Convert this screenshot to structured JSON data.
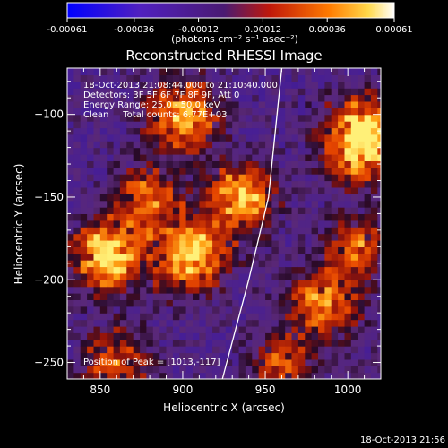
{
  "chart_data": {
    "type": "heatmap",
    "title": "Reconstructed RHESSI Image",
    "xlabel": "Heliocentric X (arcsec)",
    "ylabel": "Heliocentric Y (arcsec)",
    "xlim": [
      830,
      1020
    ],
    "ylim": [
      -260,
      -72
    ],
    "x_ticks": [
      850,
      900,
      950,
      1000
    ],
    "y_ticks": [
      -100,
      -150,
      -200,
      -250
    ],
    "colorbar": {
      "range": [
        -0.00061,
        0.00061
      ],
      "tick_values": [
        -0.00061,
        -0.00036,
        -0.00012,
        0.00012,
        0.00036,
        0.00061
      ],
      "tick_labels": [
        "-0.00061",
        "-0.00036",
        "-0.00012",
        "0.00012",
        "0.00036",
        "0.00061"
      ],
      "unit_label": "(photons cm⁻² s⁻¹ asec⁻²)"
    },
    "annotations": [
      "18-Oct-2013 21:08:44.000 to 21:10:40.000",
      "Detectors: 3F 5F 6F 7F 8F 9F, Att 0",
      "Energy Range: 25.0 - 50.0 keV",
      "Clean     Total counts: 6.77E+03"
    ],
    "peak_label": "Position of Peak = [1013,-117]",
    "peak": [
      1013,
      -117
    ],
    "timestamp": "18-Oct-2013 21:56",
    "limb_line": [
      [
        960,
        -72
      ],
      [
        952,
        -150
      ],
      [
        940,
        -200
      ],
      [
        924,
        -260
      ]
    ],
    "hot_spots": [
      {
        "x": 1010,
        "y": -115,
        "amp": 1.0,
        "s": 16
      },
      {
        "x": 900,
        "y": -100,
        "amp": 0.75,
        "s": 14
      },
      {
        "x": 935,
        "y": -150,
        "amp": 0.7,
        "s": 14
      },
      {
        "x": 855,
        "y": -185,
        "amp": 0.85,
        "s": 14
      },
      {
        "x": 905,
        "y": -185,
        "amp": 0.75,
        "s": 15
      },
      {
        "x": 880,
        "y": -150,
        "amp": 0.5,
        "s": 14
      },
      {
        "x": 985,
        "y": -215,
        "amp": 0.55,
        "s": 15
      },
      {
        "x": 860,
        "y": -250,
        "amp": 0.5,
        "s": 14
      },
      {
        "x": 960,
        "y": -250,
        "amp": 0.45,
        "s": 12
      },
      {
        "x": 1005,
        "y": -180,
        "amp": 0.5,
        "s": 12
      }
    ]
  }
}
